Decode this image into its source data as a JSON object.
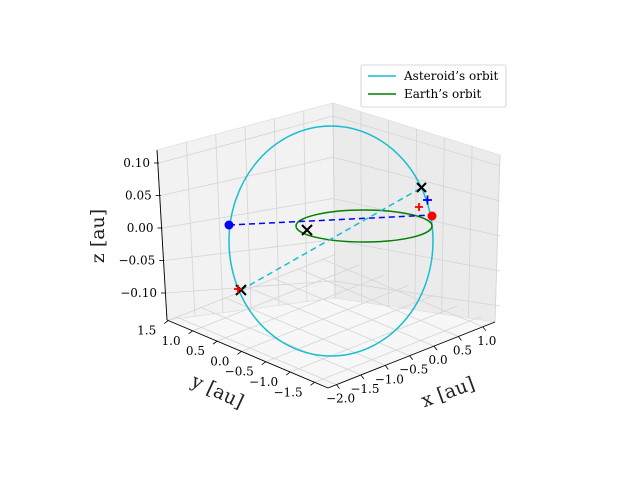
{
  "chart_data": {
    "type": "line",
    "projection": "3d",
    "axes": {
      "x": {
        "label": "x [au]",
        "ticks": [
          "−2.0",
          "−1.5",
          "−1.0",
          "−0.5",
          "0.0",
          "0.5",
          "1.0"
        ]
      },
      "y": {
        "label": "y [au]",
        "ticks": [
          "1.5",
          "1.0",
          "0.5",
          "0.0",
          "−0.5",
          "−1.0",
          "−1.5"
        ]
      },
      "z": {
        "label": "z [au]",
        "ticks": [
          "0.10",
          "0.05",
          "0.00",
          "−0.05",
          "−0.10"
        ]
      }
    },
    "legend": {
      "placement": "top-right",
      "entries": [
        {
          "label": "Asteroid’s orbit",
          "color": "#17becf"
        },
        {
          "label": "Earth’s orbit",
          "color": "#008000"
        }
      ]
    },
    "series": [
      {
        "name": "Asteroid’s orbit",
        "color": "#17becf",
        "style": "solid",
        "shape": "ellipse",
        "semi_major": 1.8,
        "semi_minor": 1.3,
        "inclination_in_z": 0.11
      },
      {
        "name": "Earth’s orbit",
        "color": "#008000",
        "style": "solid",
        "shape": "circle",
        "radius": 1.0,
        "z": 0.0
      }
    ],
    "markers": [
      {
        "type": "dot",
        "color": "#0000ff",
        "x": -1.9,
        "y": 0.0,
        "z": 0.0
      },
      {
        "type": "dot",
        "color": "#ff0000",
        "x": 1.0,
        "y": 0.0,
        "z": 0.0
      },
      {
        "type": "x",
        "color": "#000000",
        "x": 0.0,
        "y": 0.0,
        "z": 0.0
      },
      {
        "type": "x",
        "color": "#000000",
        "x": 0.9,
        "y": 0.0,
        "z": 0.05
      },
      {
        "type": "x",
        "color": "#000000",
        "x": 0.0,
        "y": -1.5,
        "z": -0.1
      },
      {
        "type": "plus",
        "color": "#0000ff",
        "x": 0.95,
        "y": 0.0,
        "z": 0.03
      },
      {
        "type": "plus",
        "color": "#ff0000",
        "x": 0.92,
        "y": -0.05,
        "z": 0.02
      },
      {
        "type": "plus",
        "color": "#ff0000",
        "x": 0.0,
        "y": -1.45,
        "z": -0.09
      }
    ],
    "dashed_lines": [
      {
        "color": "#0000ff",
        "from": "blue dot",
        "to": "red dot"
      },
      {
        "color": "#17becf",
        "from": "lower black x",
        "to": "upper black x"
      }
    ],
    "grid": true
  }
}
